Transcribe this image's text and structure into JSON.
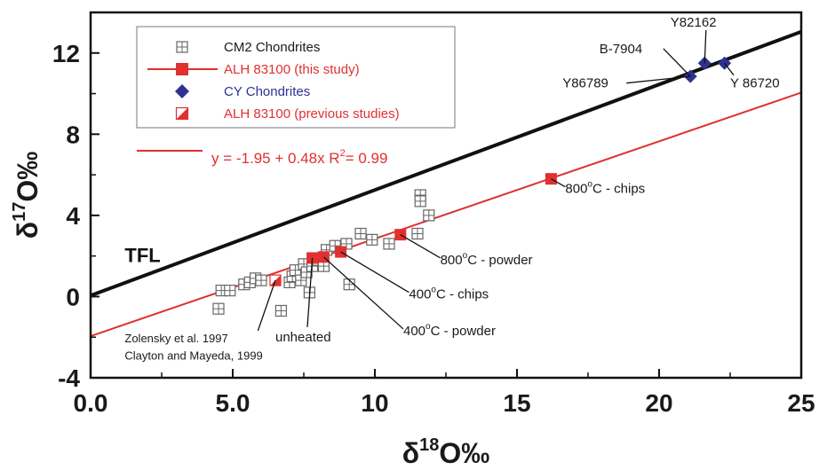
{
  "chart_data": {
    "type": "scatter",
    "xlabel": "δ18O‰",
    "ylabel": "δ17O‰",
    "xlim": [
      0,
      25
    ],
    "ylim": [
      -4,
      14
    ],
    "x_ticks": [
      "0.0",
      "5.0",
      "10",
      "15",
      "20",
      "25"
    ],
    "x_tick_values": [
      0,
      5,
      10,
      15,
      20,
      25
    ],
    "y_ticks": [
      "-4",
      "0",
      "4",
      "8",
      "12"
    ],
    "y_tick_values": [
      -4,
      0,
      4,
      8,
      12
    ],
    "grid": false,
    "legend_position": "top-left",
    "colors": {
      "red": "#e03030",
      "blue": "#2e3192",
      "black": "#111111",
      "gray": "#777777"
    },
    "legend": [
      {
        "label": "CM2 Chondrites",
        "marker": "open-square-cross",
        "color": "#1a1a1a"
      },
      {
        "label": "ALH 83100 (this study)",
        "marker": "red-square-line",
        "color": "#e03030"
      },
      {
        "label": "CY Chondrites",
        "marker": "blue-diamond",
        "color": "#2e3192"
      },
      {
        "label": "ALH 83100 (previous studies)",
        "marker": "half-square",
        "color": "#e03030"
      }
    ],
    "equation": {
      "text": "y = -1.95 + 0.48x   R",
      "sup": "2",
      "tail": "= 0.99"
    },
    "lines": [
      {
        "label": "TFL",
        "intercept": 0.05,
        "slope": 0.52,
        "x_range": [
          0,
          25
        ]
      },
      {
        "label": "regression",
        "intercept": -1.95,
        "slope": 0.48,
        "x_range": [
          0,
          25
        ]
      }
    ],
    "series": [
      {
        "name": "CM2 Chondrites",
        "x": [
          4.5,
          4.6,
          4.9,
          5.4,
          5.6,
          5.8,
          6.0,
          6.7,
          7.0,
          7.1,
          7.2,
          7.4,
          7.5,
          7.6,
          7.7,
          7.8,
          8.0,
          8.2,
          8.3,
          8.6,
          9.0,
          9.1,
          9.5,
          9.9,
          10.5,
          11.5,
          11.6,
          11.9,
          11.6
        ],
        "y": [
          -0.6,
          0.3,
          0.3,
          0.6,
          0.7,
          0.9,
          0.8,
          -0.7,
          0.7,
          1.0,
          1.3,
          0.8,
          1.6,
          1.2,
          0.2,
          1.5,
          1.8,
          1.5,
          2.3,
          2.5,
          2.6,
          0.6,
          3.1,
          2.8,
          2.6,
          3.1,
          5.0,
          4.0,
          4.7
        ]
      },
      {
        "name": "ALH 83100 (this study)",
        "x": [
          7.8,
          8.2,
          8.8,
          10.9,
          16.2
        ],
        "y": [
          1.9,
          1.95,
          2.2,
          3.05,
          5.8
        ]
      },
      {
        "name": "CY Chondrites",
        "x": [
          21.1,
          21.6,
          22.3
        ],
        "y": [
          10.85,
          11.5,
          11.5
        ]
      },
      {
        "name": "ALH 83100 (previous studies)",
        "x": [
          6.5
        ],
        "y": [
          0.8
        ]
      }
    ],
    "annotations": [
      {
        "text": "800°C - chips",
        "main": "800",
        "sup": "o",
        "tail": "C - chips",
        "x": 16.7,
        "y": 5.1,
        "target": [
          16.2,
          5.8
        ],
        "style": "ann"
      },
      {
        "text": "800°C - powder",
        "main": "800",
        "sup": "o",
        "tail": "C - powder",
        "x": 12.3,
        "y": 1.6,
        "target": [
          10.9,
          3.05
        ],
        "style": "ann"
      },
      {
        "text": "400°C - chips",
        "main": "400",
        "sup": "o",
        "tail": "C - chips",
        "x": 11.2,
        "y": -0.1,
        "target": [
          8.8,
          2.2
        ],
        "style": "ann"
      },
      {
        "text": "400°C - powder",
        "main": "400",
        "sup": "o",
        "tail": "C - powder",
        "x": 11.0,
        "y": -1.9,
        "target": [
          8.2,
          1.95
        ],
        "style": "ann"
      },
      {
        "text": "unheated",
        "main": "unheated",
        "sup": "",
        "tail": "",
        "x": 6.5,
        "y": -2.2,
        "target": [
          7.8,
          1.9
        ],
        "style": "ann"
      },
      {
        "text": "Zolensky et al. 1997",
        "main": "Zolensky et al. 1997",
        "sup": "",
        "tail": "",
        "x": 1.2,
        "y": -2.25,
        "target": [
          6.5,
          0.8
        ],
        "style": "ann-small"
      },
      {
        "text": "Clayton and Mayeda, 1999",
        "main": "Clayton and Mayeda, 1999",
        "sup": "",
        "tail": "",
        "x": 1.2,
        "y": -3.1,
        "target": null,
        "style": "ann-small"
      },
      {
        "text": "Y82162",
        "main": "Y82162",
        "sup": "",
        "tail": "",
        "x": 20.4,
        "y": 13.3,
        "target": [
          21.6,
          11.5
        ],
        "style": "ann"
      },
      {
        "text": "B-7904",
        "main": "B-7904",
        "sup": "",
        "tail": "",
        "x": 17.9,
        "y": 12.0,
        "target": [
          21.1,
          10.85
        ],
        "style": "ann"
      },
      {
        "text": "Y86789",
        "main": "Y86789",
        "sup": "",
        "tail": "",
        "x": 16.6,
        "y": 10.3,
        "target": [
          21.1,
          10.85
        ],
        "style": "ann"
      },
      {
        "text": "Y 86720",
        "main": "Y 86720",
        "sup": "",
        "tail": "",
        "x": 22.5,
        "y": 10.3,
        "target": [
          22.3,
          11.5
        ],
        "style": "ann"
      },
      {
        "text": "TFL",
        "main": "TFL",
        "sup": "",
        "tail": "",
        "x": 1.2,
        "y": 1.7,
        "target": null,
        "style": "tfl"
      }
    ]
  }
}
